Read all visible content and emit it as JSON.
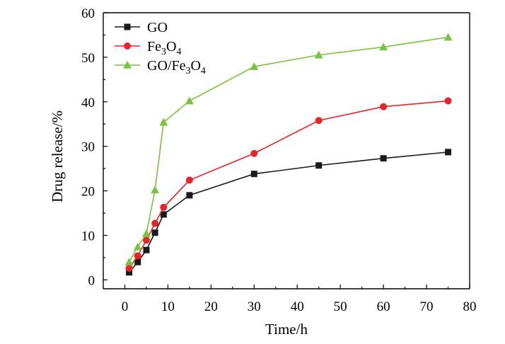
{
  "chart_data": {
    "type": "line",
    "xlabel": "Time/h",
    "ylabel": "Drug release/%",
    "xlim": [
      -5,
      80
    ],
    "ylim": [
      -2,
      60
    ],
    "xticks": [
      0,
      10,
      20,
      30,
      40,
      50,
      60,
      70,
      80
    ],
    "yticks": [
      0,
      10,
      20,
      30,
      40,
      50,
      60
    ],
    "grid": false,
    "legend_position": "top-left",
    "series": [
      {
        "name": "GO",
        "legend": {
          "base": "GO",
          "parts": []
        },
        "color": "#1a1a1a",
        "marker": "square",
        "x": [
          1,
          3,
          5,
          7,
          9,
          15,
          30,
          45,
          60,
          75
        ],
        "y": [
          1.7,
          4.0,
          6.7,
          10.6,
          14.7,
          19.0,
          23.8,
          25.7,
          27.3,
          28.7
        ]
      },
      {
        "name": "Fe3O4",
        "legend": {
          "base": "Fe",
          "parts": [
            {
              "sub": "3",
              "text": "O"
            },
            {
              "sub": "4",
              "text": ""
            }
          ]
        },
        "color": "#e8232a",
        "marker": "circle",
        "x": [
          1,
          3,
          5,
          7,
          9,
          15,
          30,
          45,
          60,
          75
        ],
        "y": [
          2.6,
          5.4,
          8.9,
          12.7,
          16.3,
          22.4,
          28.4,
          35.8,
          38.9,
          40.2
        ]
      },
      {
        "name": "GO/Fe3O4",
        "legend": {
          "base": "GO/Fe",
          "parts": [
            {
              "sub": "3",
              "text": "O"
            },
            {
              "sub": "4",
              "text": ""
            }
          ]
        },
        "color": "#7cc242",
        "marker": "triangle",
        "x": [
          1,
          3,
          5,
          7,
          9,
          15,
          30,
          45,
          60,
          75
        ],
        "y": [
          4.0,
          7.4,
          10.4,
          20.2,
          35.4,
          40.2,
          47.9,
          50.5,
          52.3,
          54.5
        ]
      }
    ]
  }
}
